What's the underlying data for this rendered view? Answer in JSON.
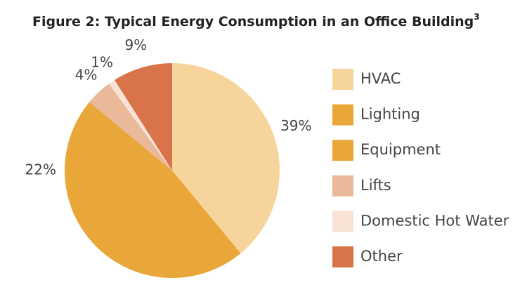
{
  "chart_data": {
    "type": "pie",
    "title": "Figure 2: Typical Energy Consumption in an Office Building",
    "title_note": "3",
    "categories": [
      "HVAC",
      "Lighting",
      "Equipment",
      "Lifts",
      "Domestic Hot Water",
      "Other"
    ],
    "values": [
      39,
      25,
      22,
      4,
      1,
      9
    ],
    "value_labels": [
      "39%",
      null,
      "22%",
      "4%",
      "1%",
      "9%"
    ],
    "colors": [
      "#f7d49b",
      "#e9a73a",
      "#e9a73a",
      "#e9b99a",
      "#f8e3d6",
      "#d9744a"
    ],
    "legend": "right"
  }
}
